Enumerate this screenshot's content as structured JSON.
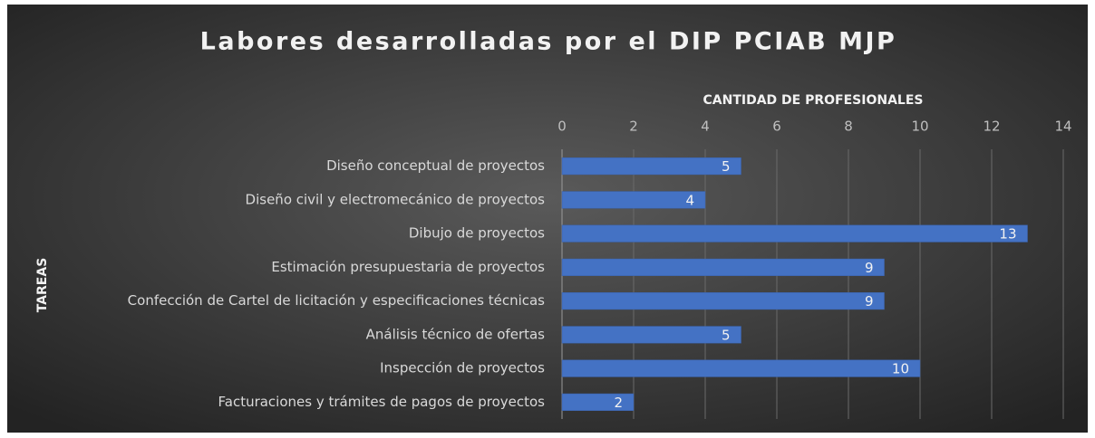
{
  "chart_data": {
    "type": "bar",
    "orientation": "horizontal",
    "title": "Labores desarrolladas por el DIP PCIAB MJP",
    "x_label": "CANTIDAD DE PROFESIONALES",
    "y_label": "TAREAS",
    "categories": [
      "Diseño conceptual de proyectos",
      "Diseño civil y electromecánico de proyectos",
      "Dibujo de proyectos",
      "Estimación presupuestaria de proyectos",
      "Confección de Cartel de licitación y especificaciones técnicas",
      "Análisis técnico de ofertas",
      "Inspección de proyectos",
      "Facturaciones y trámites de pagos de proyectos"
    ],
    "values": [
      5,
      4,
      13,
      9,
      9,
      5,
      10,
      2
    ],
    "color": "#4472c4",
    "xlim": [
      0,
      14
    ],
    "xticks": [
      0,
      2,
      4,
      6,
      8,
      10,
      12,
      14
    ],
    "grid": true
  }
}
